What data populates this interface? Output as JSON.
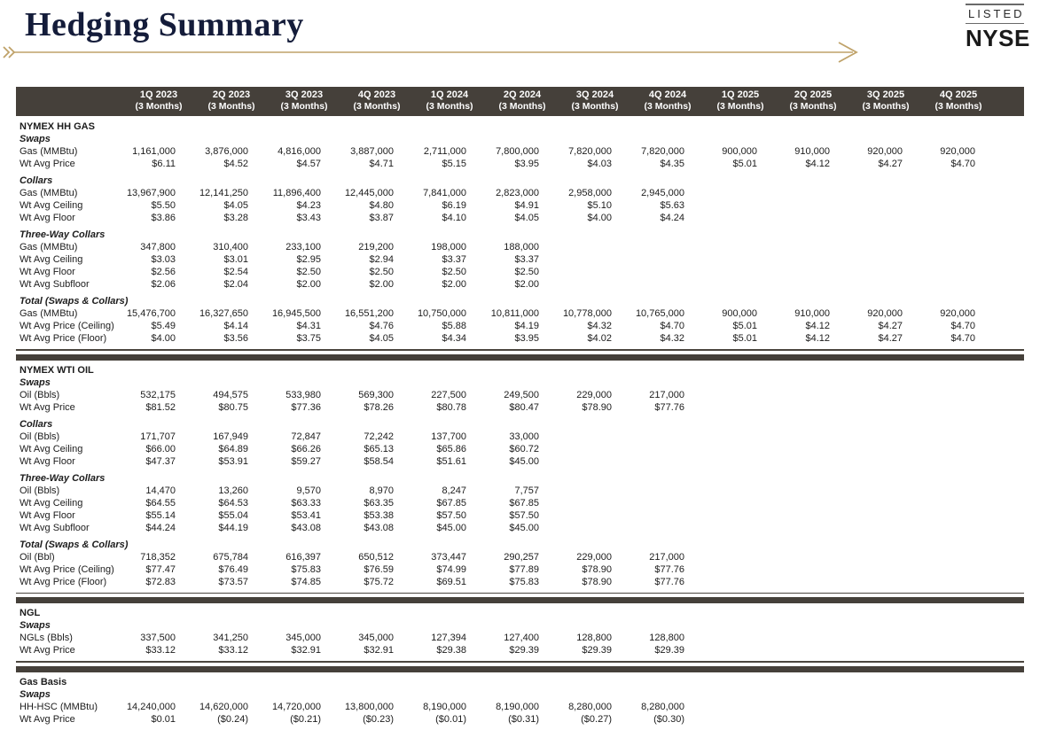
{
  "page": {
    "title": "Hedging Summary",
    "listed_label": "LISTED",
    "exchange": "NYSE"
  },
  "colors": {
    "header_bar": "#45403a",
    "accent_gold": "#bfa269",
    "title_navy": "#141c3a"
  },
  "icons": {
    "left_chevrons": "»",
    "right_arrow": "arrow-right"
  },
  "table": {
    "columns": [
      {
        "quarter": "1Q 2023",
        "sub": "(3 Months)"
      },
      {
        "quarter": "2Q 2023",
        "sub": "(3 Months)"
      },
      {
        "quarter": "3Q 2023",
        "sub": "(3 Months)"
      },
      {
        "quarter": "4Q 2023",
        "sub": "(3 Months)"
      },
      {
        "quarter": "1Q 2024",
        "sub": "(3 Months)"
      },
      {
        "quarter": "2Q 2024",
        "sub": "(3 Months)"
      },
      {
        "quarter": "3Q 2024",
        "sub": "(3 Months)"
      },
      {
        "quarter": "4Q 2024",
        "sub": "(3 Months)"
      },
      {
        "quarter": "1Q 2025",
        "sub": "(3 Months)"
      },
      {
        "quarter": "2Q 2025",
        "sub": "(3 Months)"
      },
      {
        "quarter": "3Q 2025",
        "sub": "(3 Months)"
      },
      {
        "quarter": "4Q 2025",
        "sub": "(3 Months)"
      }
    ],
    "sections": [
      {
        "name": "NYMEX HH GAS",
        "groups": [
          {
            "label": "Swaps",
            "rows": [
              {
                "label": "Gas (MMBtu)",
                "values": [
                  "1,161,000",
                  "3,876,000",
                  "4,816,000",
                  "3,887,000",
                  "2,711,000",
                  "7,800,000",
                  "7,820,000",
                  "7,820,000",
                  "900,000",
                  "910,000",
                  "920,000",
                  "920,000"
                ]
              },
              {
                "label": "Wt Avg Price",
                "values": [
                  "$6.11",
                  "$4.52",
                  "$4.57",
                  "$4.71",
                  "$5.15",
                  "$3.95",
                  "$4.03",
                  "$4.35",
                  "$5.01",
                  "$4.12",
                  "$4.27",
                  "$4.70"
                ]
              }
            ]
          },
          {
            "label": "Collars",
            "rows": [
              {
                "label": "Gas (MMBtu)",
                "values": [
                  "13,967,900",
                  "12,141,250",
                  "11,896,400",
                  "12,445,000",
                  "7,841,000",
                  "2,823,000",
                  "2,958,000",
                  "2,945,000",
                  "",
                  "",
                  "",
                  ""
                ]
              },
              {
                "label": "Wt Avg Ceiling",
                "values": [
                  "$5.50",
                  "$4.05",
                  "$4.23",
                  "$4.80",
                  "$6.19",
                  "$4.91",
                  "$5.10",
                  "$5.63",
                  "",
                  "",
                  "",
                  ""
                ]
              },
              {
                "label": "Wt Avg Floor",
                "values": [
                  "$3.86",
                  "$3.28",
                  "$3.43",
                  "$3.87",
                  "$4.10",
                  "$4.05",
                  "$4.00",
                  "$4.24",
                  "",
                  "",
                  "",
                  ""
                ]
              }
            ]
          },
          {
            "label": "Three-Way Collars",
            "rows": [
              {
                "label": "Gas (MMBtu)",
                "values": [
                  "347,800",
                  "310,400",
                  "233,100",
                  "219,200",
                  "198,000",
                  "188,000",
                  "",
                  "",
                  "",
                  "",
                  "",
                  ""
                ]
              },
              {
                "label": "Wt Avg Ceiling",
                "values": [
                  "$3.03",
                  "$3.01",
                  "$2.95",
                  "$2.94",
                  "$3.37",
                  "$3.37",
                  "",
                  "",
                  "",
                  "",
                  "",
                  ""
                ]
              },
              {
                "label": "Wt Avg Floor",
                "values": [
                  "$2.56",
                  "$2.54",
                  "$2.50",
                  "$2.50",
                  "$2.50",
                  "$2.50",
                  "",
                  "",
                  "",
                  "",
                  "",
                  ""
                ]
              },
              {
                "label": "Wt Avg Subfloor",
                "values": [
                  "$2.06",
                  "$2.04",
                  "$2.00",
                  "$2.00",
                  "$2.00",
                  "$2.00",
                  "",
                  "",
                  "",
                  "",
                  "",
                  ""
                ]
              }
            ]
          },
          {
            "label": "Total (Swaps & Collars)",
            "rows": [
              {
                "label": "Gas (MMBtu)",
                "values": [
                  "15,476,700",
                  "16,327,650",
                  "16,945,500",
                  "16,551,200",
                  "10,750,000",
                  "10,811,000",
                  "10,778,000",
                  "10,765,000",
                  "900,000",
                  "910,000",
                  "920,000",
                  "920,000"
                ]
              },
              {
                "label": "Wt Avg Price (Ceiling)",
                "values": [
                  "$5.49",
                  "$4.14",
                  "$4.31",
                  "$4.76",
                  "$5.88",
                  "$4.19",
                  "$4.32",
                  "$4.70",
                  "$5.01",
                  "$4.12",
                  "$4.27",
                  "$4.70"
                ]
              },
              {
                "label": "Wt Avg Price (Floor)",
                "values": [
                  "$4.00",
                  "$3.56",
                  "$3.75",
                  "$4.05",
                  "$4.34",
                  "$3.95",
                  "$4.02",
                  "$4.32",
                  "$5.01",
                  "$4.12",
                  "$4.27",
                  "$4.70"
                ]
              }
            ]
          }
        ]
      },
      {
        "name": "NYMEX WTI OIL",
        "groups": [
          {
            "label": "Swaps",
            "rows": [
              {
                "label": "Oil (Bbls)",
                "values": [
                  "532,175",
                  "494,575",
                  "533,980",
                  "569,300",
                  "227,500",
                  "249,500",
                  "229,000",
                  "217,000",
                  "",
                  "",
                  "",
                  ""
                ]
              },
              {
                "label": "Wt Avg Price",
                "values": [
                  "$81.52",
                  "$80.75",
                  "$77.36",
                  "$78.26",
                  "$80.78",
                  "$80.47",
                  "$78.90",
                  "$77.76",
                  "",
                  "",
                  "",
                  ""
                ]
              }
            ]
          },
          {
            "label": "Collars",
            "rows": [
              {
                "label": "Oil (Bbls)",
                "values": [
                  "171,707",
                  "167,949",
                  "72,847",
                  "72,242",
                  "137,700",
                  "33,000",
                  "",
                  "",
                  "",
                  "",
                  "",
                  ""
                ]
              },
              {
                "label": "Wt Avg Ceiling",
                "values": [
                  "$66.00",
                  "$64.89",
                  "$66.26",
                  "$65.13",
                  "$65.86",
                  "$60.72",
                  "",
                  "",
                  "",
                  "",
                  "",
                  ""
                ]
              },
              {
                "label": "Wt Avg Floor",
                "values": [
                  "$47.37",
                  "$53.91",
                  "$59.27",
                  "$58.54",
                  "$51.61",
                  "$45.00",
                  "",
                  "",
                  "",
                  "",
                  "",
                  ""
                ]
              }
            ]
          },
          {
            "label": "Three-Way Collars",
            "rows": [
              {
                "label": "Oil (Bbls)",
                "values": [
                  "14,470",
                  "13,260",
                  "9,570",
                  "8,970",
                  "8,247",
                  "7,757",
                  "",
                  "",
                  "",
                  "",
                  "",
                  ""
                ]
              },
              {
                "label": "Wt Avg Ceiling",
                "values": [
                  "$64.55",
                  "$64.53",
                  "$63.33",
                  "$63.35",
                  "$67.85",
                  "$67.85",
                  "",
                  "",
                  "",
                  "",
                  "",
                  ""
                ]
              },
              {
                "label": "Wt Avg Floor",
                "values": [
                  "$55.14",
                  "$55.04",
                  "$53.41",
                  "$53.38",
                  "$57.50",
                  "$57.50",
                  "",
                  "",
                  "",
                  "",
                  "",
                  ""
                ]
              },
              {
                "label": "Wt Avg Subfloor",
                "values": [
                  "$44.24",
                  "$44.19",
                  "$43.08",
                  "$43.08",
                  "$45.00",
                  "$45.00",
                  "",
                  "",
                  "",
                  "",
                  "",
                  ""
                ]
              }
            ]
          },
          {
            "label": "Total (Swaps & Collars)",
            "rows": [
              {
                "label": "Oil (Bbl)",
                "values": [
                  "718,352",
                  "675,784",
                  "616,397",
                  "650,512",
                  "373,447",
                  "290,257",
                  "229,000",
                  "217,000",
                  "",
                  "",
                  "",
                  ""
                ]
              },
              {
                "label": "Wt Avg Price (Ceiling)",
                "values": [
                  "$77.47",
                  "$76.49",
                  "$75.83",
                  "$76.59",
                  "$74.99",
                  "$77.89",
                  "$78.90",
                  "$77.76",
                  "",
                  "",
                  "",
                  ""
                ]
              },
              {
                "label": "Wt Avg Price (Floor)",
                "values": [
                  "$72.83",
                  "$73.57",
                  "$74.85",
                  "$75.72",
                  "$69.51",
                  "$75.83",
                  "$78.90",
                  "$77.76",
                  "",
                  "",
                  "",
                  ""
                ]
              }
            ]
          }
        ]
      },
      {
        "name": "NGL",
        "groups": [
          {
            "label": "Swaps",
            "rows": [
              {
                "label": "NGLs (Bbls)",
                "values": [
                  "337,500",
                  "341,250",
                  "345,000",
                  "345,000",
                  "127,394",
                  "127,400",
                  "128,800",
                  "128,800",
                  "",
                  "",
                  "",
                  ""
                ]
              },
              {
                "label": "Wt Avg Price",
                "values": [
                  "$33.12",
                  "$33.12",
                  "$32.91",
                  "$32.91",
                  "$29.38",
                  "$29.39",
                  "$29.39",
                  "$29.39",
                  "",
                  "",
                  "",
                  ""
                ]
              }
            ]
          }
        ]
      },
      {
        "name": "Gas Basis",
        "groups": [
          {
            "label": "Swaps",
            "rows": [
              {
                "label": "HH-HSC (MMBtu)",
                "values": [
                  "14,240,000",
                  "14,620,000",
                  "14,720,000",
                  "13,800,000",
                  "8,190,000",
                  "8,190,000",
                  "8,280,000",
                  "8,280,000",
                  "",
                  "",
                  "",
                  ""
                ]
              },
              {
                "label": "Wt Avg Price",
                "values": [
                  "$0.01",
                  "($0.24)",
                  "($0.21)",
                  "($0.23)",
                  "($0.01)",
                  "($0.31)",
                  "($0.27)",
                  "($0.30)",
                  "",
                  "",
                  "",
                  ""
                ]
              }
            ]
          }
        ]
      }
    ]
  }
}
